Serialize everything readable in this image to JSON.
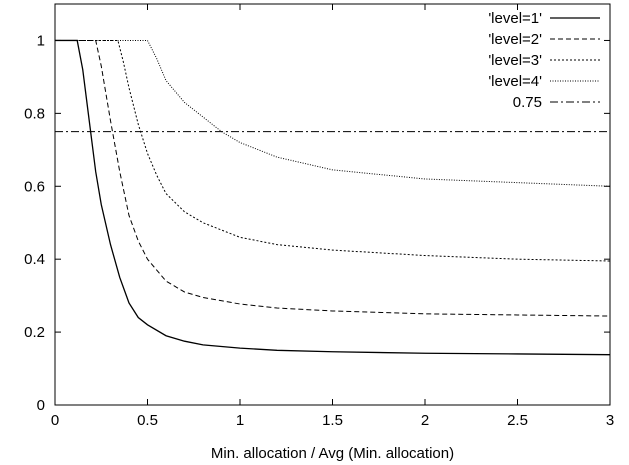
{
  "chart_data": {
    "type": "line",
    "title": "",
    "xlabel": "Min. allocation / Avg (Min. allocation)",
    "ylabel": "",
    "xlim": [
      0,
      3
    ],
    "ylim": [
      0,
      1.1
    ],
    "xticks": [
      0,
      0.5,
      1,
      1.5,
      2,
      2.5,
      3
    ],
    "xtick_labels": [
      "0",
      "0.5",
      "1",
      "1.5",
      "2",
      "2.5",
      "3"
    ],
    "yticks": [
      0,
      0.2,
      0.4,
      0.6,
      0.8,
      1
    ],
    "ytick_labels": [
      "0",
      "0.2",
      "0.4",
      "0.6",
      "0.8",
      "1"
    ],
    "grid": false,
    "legend_position": "top-right",
    "series": [
      {
        "name": "'level=1'",
        "style": "solid",
        "x": [
          0.0,
          0.12,
          0.15,
          0.18,
          0.2,
          0.22,
          0.25,
          0.3,
          0.35,
          0.4,
          0.45,
          0.5,
          0.6,
          0.7,
          0.8,
          1.0,
          1.2,
          1.5,
          2.0,
          2.5,
          3.0
        ],
        "y": [
          1.0,
          1.0,
          0.92,
          0.8,
          0.72,
          0.64,
          0.55,
          0.44,
          0.35,
          0.28,
          0.24,
          0.22,
          0.19,
          0.175,
          0.165,
          0.156,
          0.15,
          0.146,
          0.142,
          0.14,
          0.138
        ]
      },
      {
        "name": "'level=2'",
        "style": "dashed",
        "x": [
          0.0,
          0.22,
          0.25,
          0.28,
          0.3,
          0.35,
          0.4,
          0.45,
          0.5,
          0.6,
          0.7,
          0.8,
          1.0,
          1.2,
          1.5,
          2.0,
          2.5,
          3.0
        ],
        "y": [
          1.0,
          1.0,
          0.93,
          0.84,
          0.78,
          0.64,
          0.52,
          0.45,
          0.4,
          0.34,
          0.31,
          0.295,
          0.277,
          0.266,
          0.258,
          0.25,
          0.247,
          0.244
        ]
      },
      {
        "name": "'level=3'",
        "style": "dotted",
        "x": [
          0.0,
          0.34,
          0.37,
          0.4,
          0.45,
          0.5,
          0.55,
          0.6,
          0.7,
          0.8,
          1.0,
          1.2,
          1.5,
          2.0,
          2.5,
          3.0
        ],
        "y": [
          1.0,
          1.0,
          0.94,
          0.87,
          0.77,
          0.69,
          0.63,
          0.58,
          0.53,
          0.5,
          0.46,
          0.44,
          0.425,
          0.41,
          0.4,
          0.395
        ]
      },
      {
        "name": "'level=4'",
        "style": "fine-dotted",
        "x": [
          0.0,
          0.5,
          0.55,
          0.6,
          0.7,
          0.8,
          0.9,
          1.0,
          1.2,
          1.5,
          2.0,
          2.5,
          3.0
        ],
        "y": [
          1.0,
          1.0,
          0.95,
          0.89,
          0.83,
          0.79,
          0.75,
          0.72,
          0.68,
          0.645,
          0.62,
          0.61,
          0.6
        ]
      },
      {
        "name": "0.75",
        "style": "dash-dot",
        "x": [
          0.0,
          3.0
        ],
        "y": [
          0.75,
          0.75
        ]
      }
    ]
  }
}
